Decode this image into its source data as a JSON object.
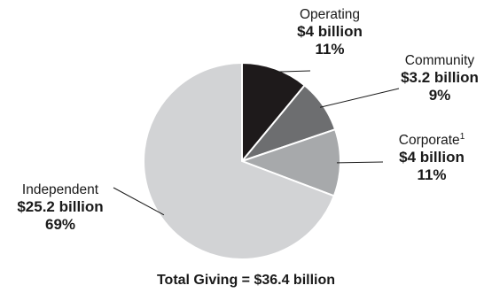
{
  "chart_data": {
    "type": "pie",
    "slices": [
      {
        "name": "Operating",
        "amount": "$4 billion",
        "percent": "11%",
        "value": 4.0,
        "color": "#1e1a1b"
      },
      {
        "name": "Community",
        "amount": "$3.2 billion",
        "percent": "9%",
        "value": 3.2,
        "color": "#6d6e70"
      },
      {
        "name": "Corporate",
        "amount": "$4 billion",
        "percent": "11%",
        "value": 4.0,
        "color": "#a7a9ab",
        "footnote": "1"
      },
      {
        "name": "Independent",
        "amount": "$25.2 billion",
        "percent": "69%",
        "value": 25.2,
        "color": "#d2d3d5"
      }
    ],
    "footer": "Total Giving = $36.4 billion"
  }
}
